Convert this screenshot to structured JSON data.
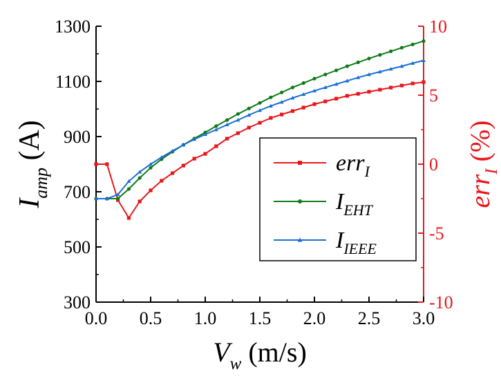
{
  "chart_data": {
    "type": "line",
    "title": "",
    "xlabel": {
      "main": "V",
      "sub": "w",
      "unit": " (m/s)"
    },
    "ylabel_left": {
      "main": "I",
      "sub": "amp",
      "unit": " (A)"
    },
    "ylabel_right": {
      "main": "err",
      "sub": "I",
      "unit": " (%)"
    },
    "xlim": [
      0,
      3.0
    ],
    "ylim_left": [
      300,
      1300
    ],
    "ylim_right": [
      -10,
      10
    ],
    "xticks": [
      "0.0",
      "0.5",
      "1.0",
      "1.5",
      "2.0",
      "2.5",
      "3.0"
    ],
    "xtick_values": [
      0,
      0.5,
      1.0,
      1.5,
      2.0,
      2.5,
      3.0
    ],
    "yticks_left": [
      "300",
      "500",
      "700",
      "900",
      "1100",
      "1300"
    ],
    "ytick_values_left": [
      300,
      500,
      700,
      900,
      1100,
      1300
    ],
    "yticks_right": [
      "-10",
      "-5",
      "0",
      "5",
      "10"
    ],
    "ytick_values_right": [
      -10,
      -5,
      0,
      5,
      10
    ],
    "grid": false,
    "legend_position": "center-right",
    "x": [
      0.0,
      0.1,
      0.2,
      0.3,
      0.4,
      0.5,
      0.6,
      0.7,
      0.8,
      0.9,
      1.0,
      1.1,
      1.2,
      1.3,
      1.4,
      1.5,
      1.6,
      1.7,
      1.8,
      1.9,
      2.0,
      2.1,
      2.2,
      2.3,
      2.4,
      2.5,
      2.6,
      2.7,
      2.8,
      2.9,
      3.0
    ],
    "series": [
      {
        "name": "err_I",
        "legend_main": "err",
        "legend_sub": "I",
        "axis": "right",
        "color": "#e8161b",
        "marker": "square",
        "values": [
          0.0,
          0.0,
          -2.6,
          -3.9,
          -2.7,
          -1.9,
          -1.2,
          -0.65,
          -0.1,
          0.4,
          0.75,
          1.3,
          1.85,
          2.25,
          2.65,
          3.0,
          3.35,
          3.6,
          3.85,
          4.1,
          4.35,
          4.55,
          4.75,
          4.95,
          5.1,
          5.25,
          5.4,
          5.55,
          5.7,
          5.85,
          5.95
        ]
      },
      {
        "name": "I_EHT",
        "legend_main": "I",
        "legend_sub": "EHT",
        "axis": "left",
        "color": "#0e7a17",
        "marker": "circle",
        "values": [
          675,
          675,
          675,
          710,
          750,
          787,
          818,
          845,
          870,
          893,
          915,
          938,
          960,
          982,
          1002,
          1022,
          1042,
          1060,
          1078,
          1094,
          1110,
          1125,
          1140,
          1155,
          1169,
          1183,
          1196,
          1209,
          1222,
          1234,
          1246
        ]
      },
      {
        "name": "I_IEEE",
        "legend_main": "I",
        "legend_sub": "IEEE",
        "axis": "left",
        "color": "#1a6fd6",
        "marker": "triangle",
        "values": [
          675,
          675,
          690,
          738,
          772,
          800,
          825,
          848,
          870,
          890,
          908,
          925,
          943,
          960,
          978,
          995,
          1011,
          1025,
          1040,
          1053,
          1066,
          1078,
          1090,
          1102,
          1114,
          1125,
          1135,
          1145,
          1155,
          1166,
          1176
        ]
      }
    ]
  }
}
